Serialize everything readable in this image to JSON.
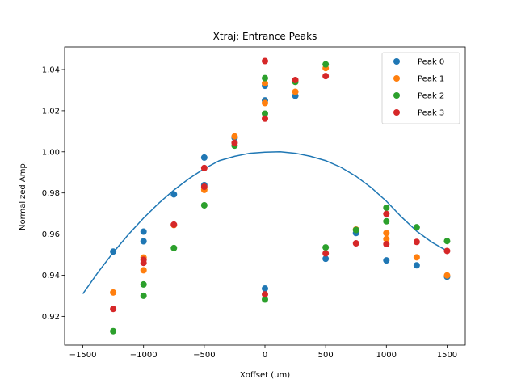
{
  "chart_data": {
    "type": "scatter",
    "title": "Xtraj: Entrance Peaks",
    "xlabel": "Xoffset (um)",
    "ylabel": "Normalized Amp.",
    "xlim": [
      -1650,
      1650
    ],
    "ylim": [
      0.906,
      1.051
    ],
    "xticks": [
      -1500,
      -1000,
      -500,
      0,
      500,
      1000,
      1500
    ],
    "xtick_labels": [
      "−1500",
      "−1000",
      "−500",
      "0",
      "500",
      "1000",
      "1500"
    ],
    "yticks": [
      0.92,
      0.94,
      0.96,
      0.98,
      1.0,
      1.02,
      1.04
    ],
    "ytick_labels": [
      "0.92",
      "0.94",
      "0.96",
      "0.98",
      "1.00",
      "1.02",
      "1.04"
    ],
    "grid": false,
    "legend_position": "top-right",
    "series": [
      {
        "name": "Peak 0",
        "color": "#1f77b4",
        "points": [
          [
            -1250,
            0.9515
          ],
          [
            -1000,
            0.9612
          ],
          [
            -1000,
            0.9565
          ],
          [
            -750,
            0.9793
          ],
          [
            -500,
            0.9972
          ],
          [
            -500,
            0.9838
          ],
          [
            -250,
            1.0068
          ],
          [
            0,
            1.0321
          ],
          [
            0,
            1.025
          ],
          [
            0,
            0.9335
          ],
          [
            250,
            1.0272
          ],
          [
            500,
            0.948
          ],
          [
            750,
            0.9605
          ],
          [
            1000,
            0.9472
          ],
          [
            1250,
            0.9448
          ],
          [
            1500,
            0.9393
          ]
        ]
      },
      {
        "name": "Peak 1",
        "color": "#ff7f0e",
        "points": [
          [
            -1250,
            0.9316
          ],
          [
            -1000,
            0.9486
          ],
          [
            -1000,
            0.9424
          ],
          [
            -750,
            0.9644
          ],
          [
            -500,
            0.9815
          ],
          [
            -250,
            1.0075
          ],
          [
            0,
            1.0333
          ],
          [
            0,
            1.0237
          ],
          [
            250,
            1.0292
          ],
          [
            500,
            1.0407
          ],
          [
            750,
            0.9622
          ],
          [
            1000,
            0.9605
          ],
          [
            1000,
            0.9576
          ],
          [
            1250,
            0.9487
          ],
          [
            1500,
            0.9399
          ]
        ]
      },
      {
        "name": "Peak 2",
        "color": "#2ca02c",
        "points": [
          [
            -1250,
            0.9128
          ],
          [
            -1000,
            0.9355
          ],
          [
            -1000,
            0.93
          ],
          [
            -750,
            0.9532
          ],
          [
            -500,
            0.974
          ],
          [
            -250,
            1.003
          ],
          [
            0,
            1.0358
          ],
          [
            0,
            1.0186
          ],
          [
            0,
            0.9282
          ],
          [
            250,
            1.034
          ],
          [
            500,
            1.0425
          ],
          [
            500,
            0.9535
          ],
          [
            750,
            0.962
          ],
          [
            1000,
            0.9728
          ],
          [
            1000,
            0.9662
          ],
          [
            1250,
            0.9633
          ],
          [
            1500,
            0.9566
          ]
        ]
      },
      {
        "name": "Peak 3",
        "color": "#d62728",
        "points": [
          [
            -1250,
            0.9236
          ],
          [
            -1000,
            0.9475
          ],
          [
            -1000,
            0.946
          ],
          [
            -750,
            0.9646
          ],
          [
            -500,
            0.9921
          ],
          [
            -500,
            0.983
          ],
          [
            -250,
            1.0043
          ],
          [
            0,
            1.0441
          ],
          [
            0,
            1.0161
          ],
          [
            0,
            0.9307
          ],
          [
            250,
            1.0349
          ],
          [
            500,
            1.0368
          ],
          [
            500,
            0.9506
          ],
          [
            750,
            0.9555
          ],
          [
            1000,
            0.9698
          ],
          [
            1000,
            0.9551
          ],
          [
            1250,
            0.9562
          ],
          [
            1500,
            0.9518
          ]
        ]
      }
    ],
    "fit_curve": {
      "color": "#1f77b4",
      "x": [
        -1500,
        -1375,
        -1250,
        -1125,
        -1000,
        -875,
        -750,
        -625,
        -500,
        -375,
        -250,
        -125,
        0,
        125,
        250,
        375,
        500,
        625,
        750,
        875,
        1000,
        1125,
        1250,
        1375,
        1500
      ],
      "y": [
        0.931,
        0.9414,
        0.951,
        0.9598,
        0.9678,
        0.975,
        0.9814,
        0.987,
        0.9918,
        0.9957,
        0.9978,
        0.9993,
        0.9998,
        1.0,
        0.9993,
        0.9978,
        0.9957,
        0.9925,
        0.9881,
        0.9826,
        0.976,
        0.9683,
        0.9614,
        0.956,
        0.9518
      ]
    }
  }
}
